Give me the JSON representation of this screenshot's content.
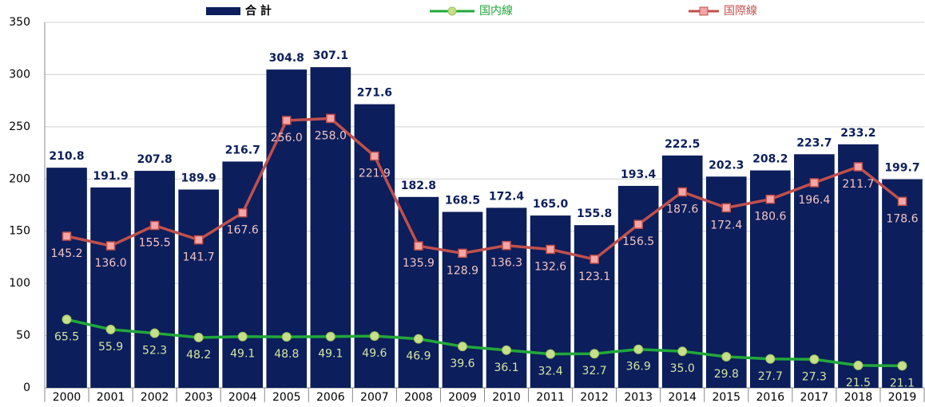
{
  "chart_data": {
    "type": "bar-line",
    "categories": [
      "2000",
      "2001",
      "2002",
      "2003",
      "2004",
      "2005",
      "2006",
      "2007",
      "2008",
      "2009",
      "2010",
      "2011",
      "2012",
      "2013",
      "2014",
      "2015",
      "2016",
      "2017",
      "2018",
      "2019"
    ],
    "series": [
      {
        "name": "合 計",
        "type": "bar",
        "color": "#0c1e5b",
        "values": [
          210.8,
          191.9,
          207.8,
          189.9,
          216.7,
          304.8,
          307.1,
          271.6,
          182.8,
          168.5,
          172.4,
          165.0,
          155.8,
          193.4,
          222.5,
          202.3,
          208.2,
          223.7,
          233.2,
          199.7
        ],
        "value_labels": [
          "210.8",
          "191.9",
          "207.8",
          "189.9",
          "216.7",
          "304.8",
          "307.1",
          "271.6",
          "182.8",
          "168.5",
          "172.4",
          "165.0",
          "155.8",
          "193.4",
          "222.5",
          "202.3",
          "208.2",
          "223.7",
          "233.2",
          "199.7"
        ]
      },
      {
        "name": "国内線",
        "type": "line",
        "color": "#22a83a",
        "values": [
          65.5,
          55.9,
          52.3,
          48.2,
          49.1,
          48.8,
          49.1,
          49.6,
          46.9,
          39.6,
          36.1,
          32.4,
          32.7,
          36.9,
          35.0,
          29.8,
          27.7,
          27.3,
          21.5,
          21.1
        ],
        "value_labels": [
          "65.5",
          "55.9",
          "52.3",
          "48.2",
          "49.1",
          "48.8",
          "49.1",
          "49.6",
          "46.9",
          "39.6",
          "36.1",
          "32.4",
          "32.7",
          "36.9",
          "35.0",
          "29.8",
          "27.7",
          "27.3",
          "21.5",
          "21.1"
        ]
      },
      {
        "name": "国際線",
        "type": "line",
        "color": "#c0504d",
        "values": [
          145.2,
          136.0,
          155.5,
          141.7,
          167.6,
          256.0,
          258.0,
          221.9,
          135.9,
          128.9,
          136.3,
          132.6,
          123.1,
          156.5,
          187.6,
          172.4,
          180.6,
          196.4,
          211.7,
          178.6
        ],
        "value_labels": [
          "145.2",
          "136.0",
          "155.5",
          "141.7",
          "167.6",
          "256.0",
          "258.0",
          "221.9",
          "135.9",
          "128.9",
          "136.3",
          "132.6",
          "123.1",
          "156.5",
          "187.6",
          "172.4",
          "180.6",
          "196.4",
          "211.7",
          "178.6"
        ]
      }
    ],
    "ylim": [
      0,
      350
    ],
    "yticks": [
      0,
      50,
      100,
      150,
      200,
      250,
      300,
      350
    ],
    "grid": true,
    "legend": "top"
  }
}
